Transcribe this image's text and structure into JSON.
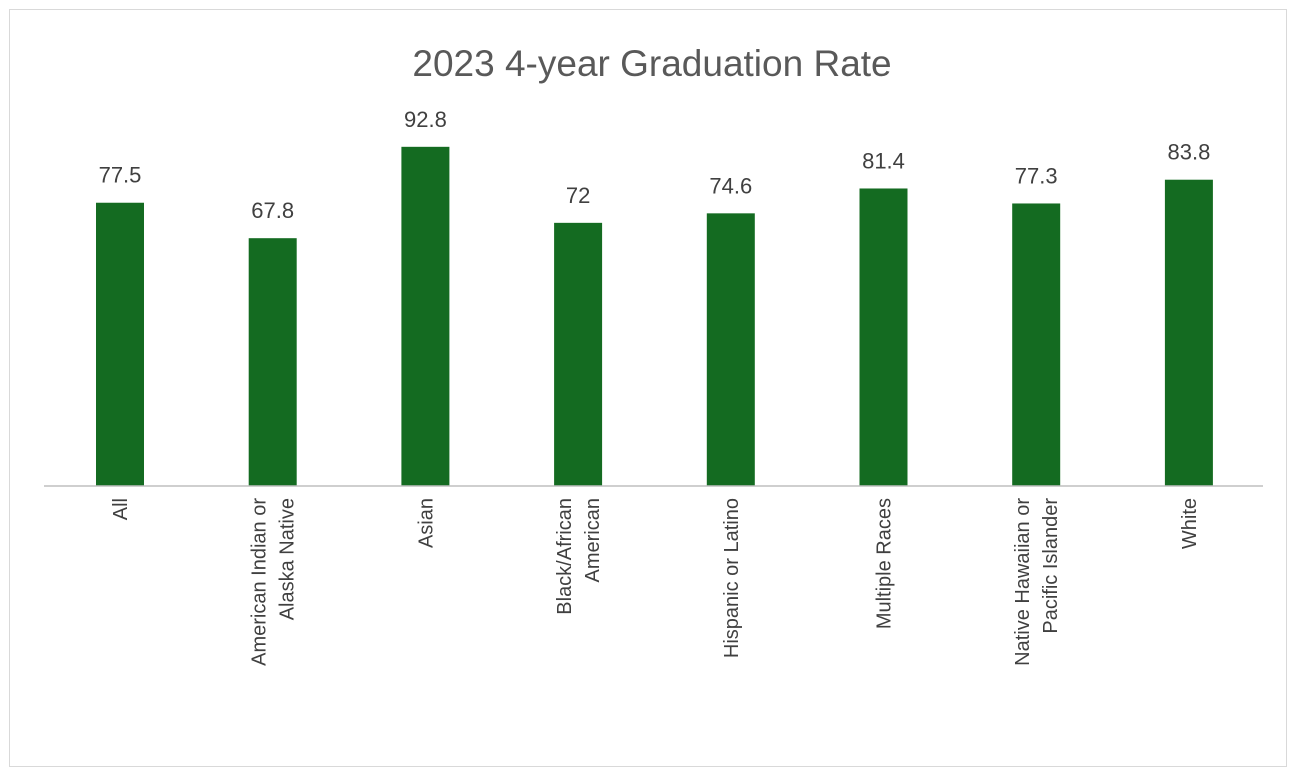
{
  "chart_data": {
    "type": "bar",
    "title": "2023 4-year Graduation Rate",
    "categories": [
      "All",
      "American Indian or Alaska Native",
      "Asian",
      "Black/African American",
      "Hispanic or Latino",
      "Multiple Races",
      "Native Hawaiian or Pacific Islander",
      "White"
    ],
    "category_label_lines": [
      [
        "All"
      ],
      [
        "American Indian or",
        "Alaska Native"
      ],
      [
        "Asian"
      ],
      [
        "Black/African",
        "American"
      ],
      [
        "Hispanic or Latino"
      ],
      [
        "Multiple Races"
      ],
      [
        "Native Hawaiian or",
        "Pacific Islander"
      ],
      [
        "White"
      ]
    ],
    "values": [
      77.5,
      67.8,
      92.8,
      72,
      74.6,
      81.4,
      77.3,
      83.8
    ],
    "value_labels": [
      "77.5",
      "67.8",
      "92.8",
      "72",
      "74.6",
      "81.4",
      "77.3",
      "83.8"
    ],
    "xlabel": "",
    "ylabel": "",
    "ylim": [
      0,
      100
    ],
    "grid": false,
    "legend": "none",
    "bar_color": "#146b21",
    "axis_color": "#bfbfbf"
  }
}
